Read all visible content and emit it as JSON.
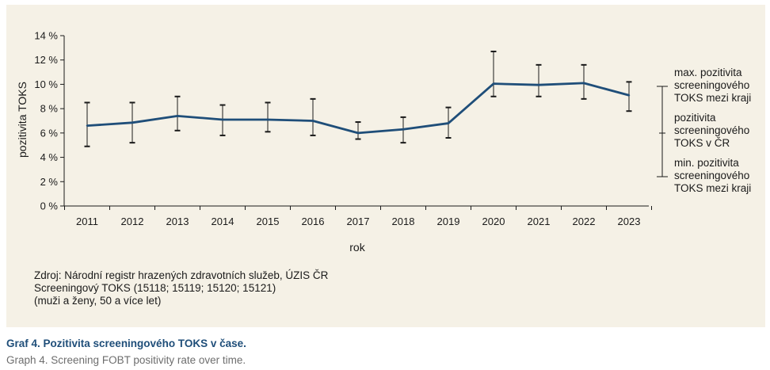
{
  "chart_data": {
    "type": "line",
    "categories": [
      "2011",
      "2012",
      "2013",
      "2014",
      "2015",
      "2016",
      "2017",
      "2018",
      "2019",
      "2020",
      "2021",
      "2022",
      "2023"
    ],
    "series": [
      {
        "values": [
          6.6,
          6.85,
          7.4,
          7.1,
          7.1,
          7.0,
          6.0,
          6.3,
          6.8,
          10.05,
          9.95,
          10.1,
          9.1
        ],
        "min": [
          4.9,
          5.2,
          6.2,
          5.8,
          6.1,
          5.8,
          5.5,
          5.2,
          5.6,
          9.0,
          9.0,
          8.8,
          7.8
        ],
        "max": [
          8.5,
          8.5,
          9.0,
          8.3,
          8.5,
          8.8,
          6.9,
          7.3,
          8.1,
          12.7,
          11.6,
          11.6,
          10.2
        ]
      }
    ],
    "ylim": [
      0,
      14
    ],
    "yticks": [
      "0 %",
      "2 %",
      "4 %",
      "6 %",
      "8 %",
      "10 %",
      "12 %",
      "14 %"
    ],
    "ylabel": "pozitivita TOKS",
    "xlabel": "rok",
    "colors": {
      "line": "#1f4e79",
      "error_bar": "#1a1a1a",
      "panel_bg": "#f5f1e6"
    }
  },
  "legend": {
    "max_lines": [
      "max. pozitivita",
      "screeningového",
      "TOKS mezi kraji"
    ],
    "mid_lines": [
      "pozitivita",
      "screeningového",
      "TOKS v ČR"
    ],
    "min_lines": [
      "min. pozitivita",
      "screeningového",
      "TOKS mezi kraji"
    ]
  },
  "source": {
    "line1": "Zdroj: Národní registr hrazených zdravotních služeb, ÚZIS ČR",
    "line2": "Screeningový TOKS (15118; 15119; 15120; 15121)",
    "line3": "(muži a ženy, 50 a více let)"
  },
  "caption": {
    "cz": "Graf 4. Pozitivita screeningového TOKS v čase.",
    "en": "Graph 4. Screening FOBT positivity rate over time."
  }
}
